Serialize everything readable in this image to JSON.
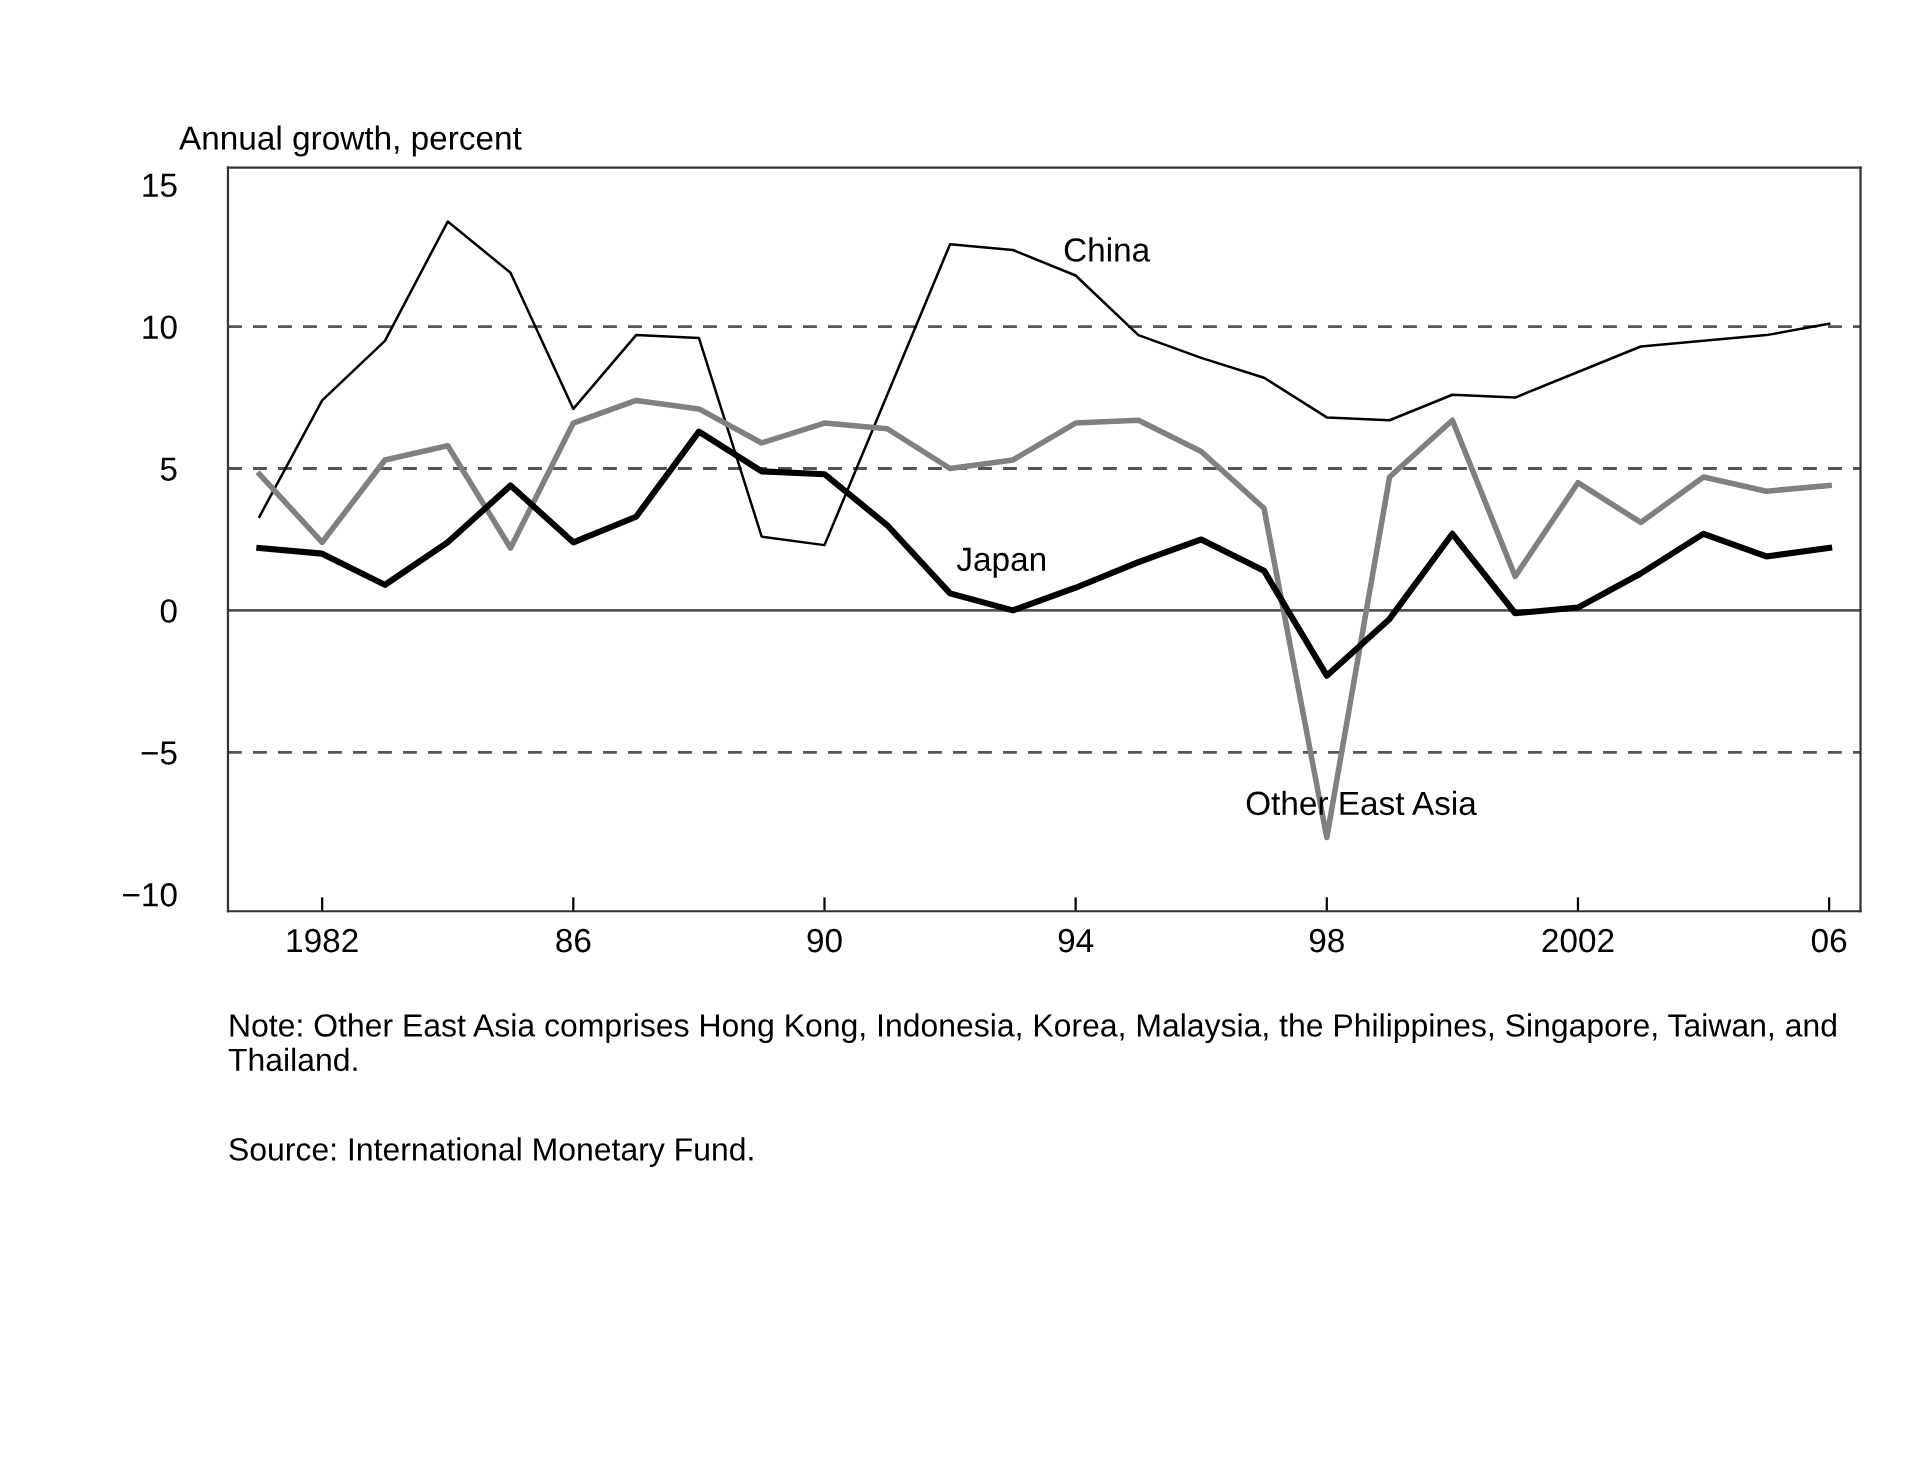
{
  "chart_data": {
    "type": "line",
    "ylabel": "Annual growth, percent",
    "x": [
      1981,
      1982,
      1983,
      1984,
      1985,
      1986,
      1987,
      1988,
      1989,
      1990,
      1991,
      1992,
      1993,
      1994,
      1995,
      1996,
      1997,
      1998,
      1999,
      2000,
      2001,
      2002,
      2003,
      2004,
      2005,
      2006
    ],
    "series": [
      {
        "name": "China",
        "color": "#000000",
        "values": [
          3.3,
          7.4,
          9.5,
          13.7,
          11.9,
          7.1,
          9.7,
          9.6,
          2.6,
          2.3,
          7.6,
          12.9,
          12.7,
          11.8,
          9.7,
          8.9,
          8.2,
          6.8,
          6.7,
          7.6,
          7.5,
          8.4,
          9.3,
          9.5,
          9.7,
          10.1
        ]
      },
      {
        "name": "Other East Asia",
        "color": "#808080",
        "values": [
          4.8,
          2.4,
          5.3,
          5.8,
          2.2,
          6.6,
          7.4,
          7.1,
          5.9,
          6.6,
          6.4,
          5.0,
          5.3,
          6.6,
          6.7,
          5.6,
          3.6,
          -8.0,
          4.7,
          6.7,
          1.2,
          4.5,
          3.1,
          4.7,
          4.2,
          4.4
        ]
      },
      {
        "name": "Japan",
        "color": "#000000",
        "values": [
          2.2,
          2.0,
          0.9,
          2.4,
          4.4,
          2.4,
          3.3,
          6.3,
          4.9,
          4.8,
          3.0,
          0.6,
          0.0,
          0.8,
          1.7,
          2.5,
          1.4,
          -2.3,
          -0.3,
          2.7,
          -0.1,
          0.1,
          1.3,
          2.7,
          1.9,
          2.2
        ]
      }
    ],
    "xlim": [
      1980.5,
      2006.5
    ],
    "xticks": [
      {
        "value": 1982,
        "label": "1982"
      },
      {
        "value": 1986,
        "label": "86"
      },
      {
        "value": 1990,
        "label": "90"
      },
      {
        "value": 1994,
        "label": "94"
      },
      {
        "value": 1998,
        "label": "98"
      },
      {
        "value": 2002,
        "label": "2002"
      },
      {
        "value": 2006,
        "label": "06"
      }
    ],
    "ylim": [
      -10.6,
      15.6
    ],
    "yticks": [
      15,
      10,
      5,
      0,
      {
        "value": -5,
        "label": "−5"
      },
      {
        "value": -10,
        "label": "−10"
      }
    ],
    "ref_lines": [
      {
        "axis": "y",
        "value": 10,
        "color": "#555555",
        "line_style": "dashed"
      },
      {
        "axis": "y",
        "value": 5,
        "color": "#555555",
        "line_style": "dashed"
      },
      {
        "axis": "y",
        "value": 0,
        "color": "#555555",
        "line_style": "solid"
      },
      {
        "axis": "y",
        "value": -5,
        "color": "#555555",
        "line_style": "dashed"
      }
    ],
    "grid": false,
    "legend": false,
    "marker": "none",
    "line_style": "solid",
    "annotations": [
      "Note: Other East Asia comprises Hong Kong, Indonesia, Korea, Malaysia, the Philippines, Singapore, Taiwan, and Thailand.",
      "Source: International Monetary Fund."
    ]
  }
}
